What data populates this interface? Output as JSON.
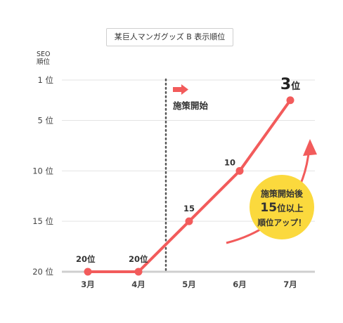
{
  "chart_data": {
    "type": "line",
    "title": "某巨人マンガグッズ B 表示順位",
    "ylabel": [
      "SEO",
      "順位"
    ],
    "categories": [
      "3月",
      "4月",
      "5月",
      "6月",
      "7月"
    ],
    "series": [
      {
        "values": [
          20,
          20,
          15,
          10,
          3
        ]
      }
    ],
    "y_ticks": [
      1,
      5,
      10,
      15,
      20
    ],
    "y_tick_labels": [
      "1 位",
      "5 位",
      "10 位",
      "15 位",
      "20 位"
    ],
    "ylim": [
      1,
      20
    ],
    "y_inverted": true,
    "grid": true,
    "data_labels": [
      "20位",
      "20位",
      "15",
      "10",
      "3"
    ],
    "best_label_unit": "位",
    "annotations": {
      "start_marker": "施策開始",
      "callout": {
        "line1": "施策開始後",
        "line2_number": "15",
        "line2_text": "位以上",
        "line3": "順位アップ！"
      }
    },
    "colors": {
      "line": "#f25b5b",
      "grid": "#e3e3e3",
      "callout": "#fbd93d",
      "axis": "#cfcfcf"
    }
  }
}
